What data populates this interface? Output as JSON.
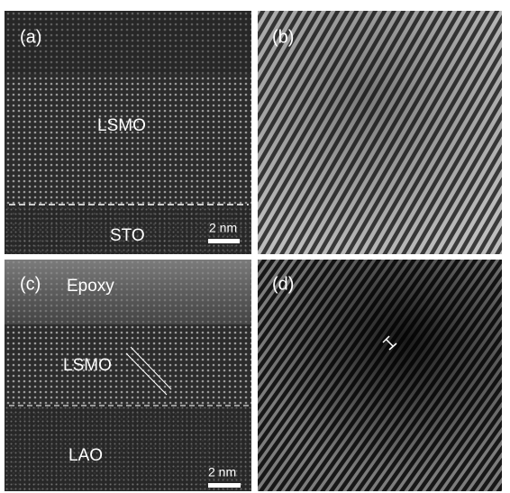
{
  "panels": [
    {
      "label": "(a)",
      "regions": [
        "LSMO",
        "STO"
      ],
      "scale_bar": "2 nm"
    },
    {
      "label": "(b)"
    },
    {
      "label": "(c)",
      "regions": [
        "Epoxy",
        "LSMO",
        "LAO"
      ],
      "scale_bar": "2 nm"
    },
    {
      "label": "(d)"
    }
  ]
}
